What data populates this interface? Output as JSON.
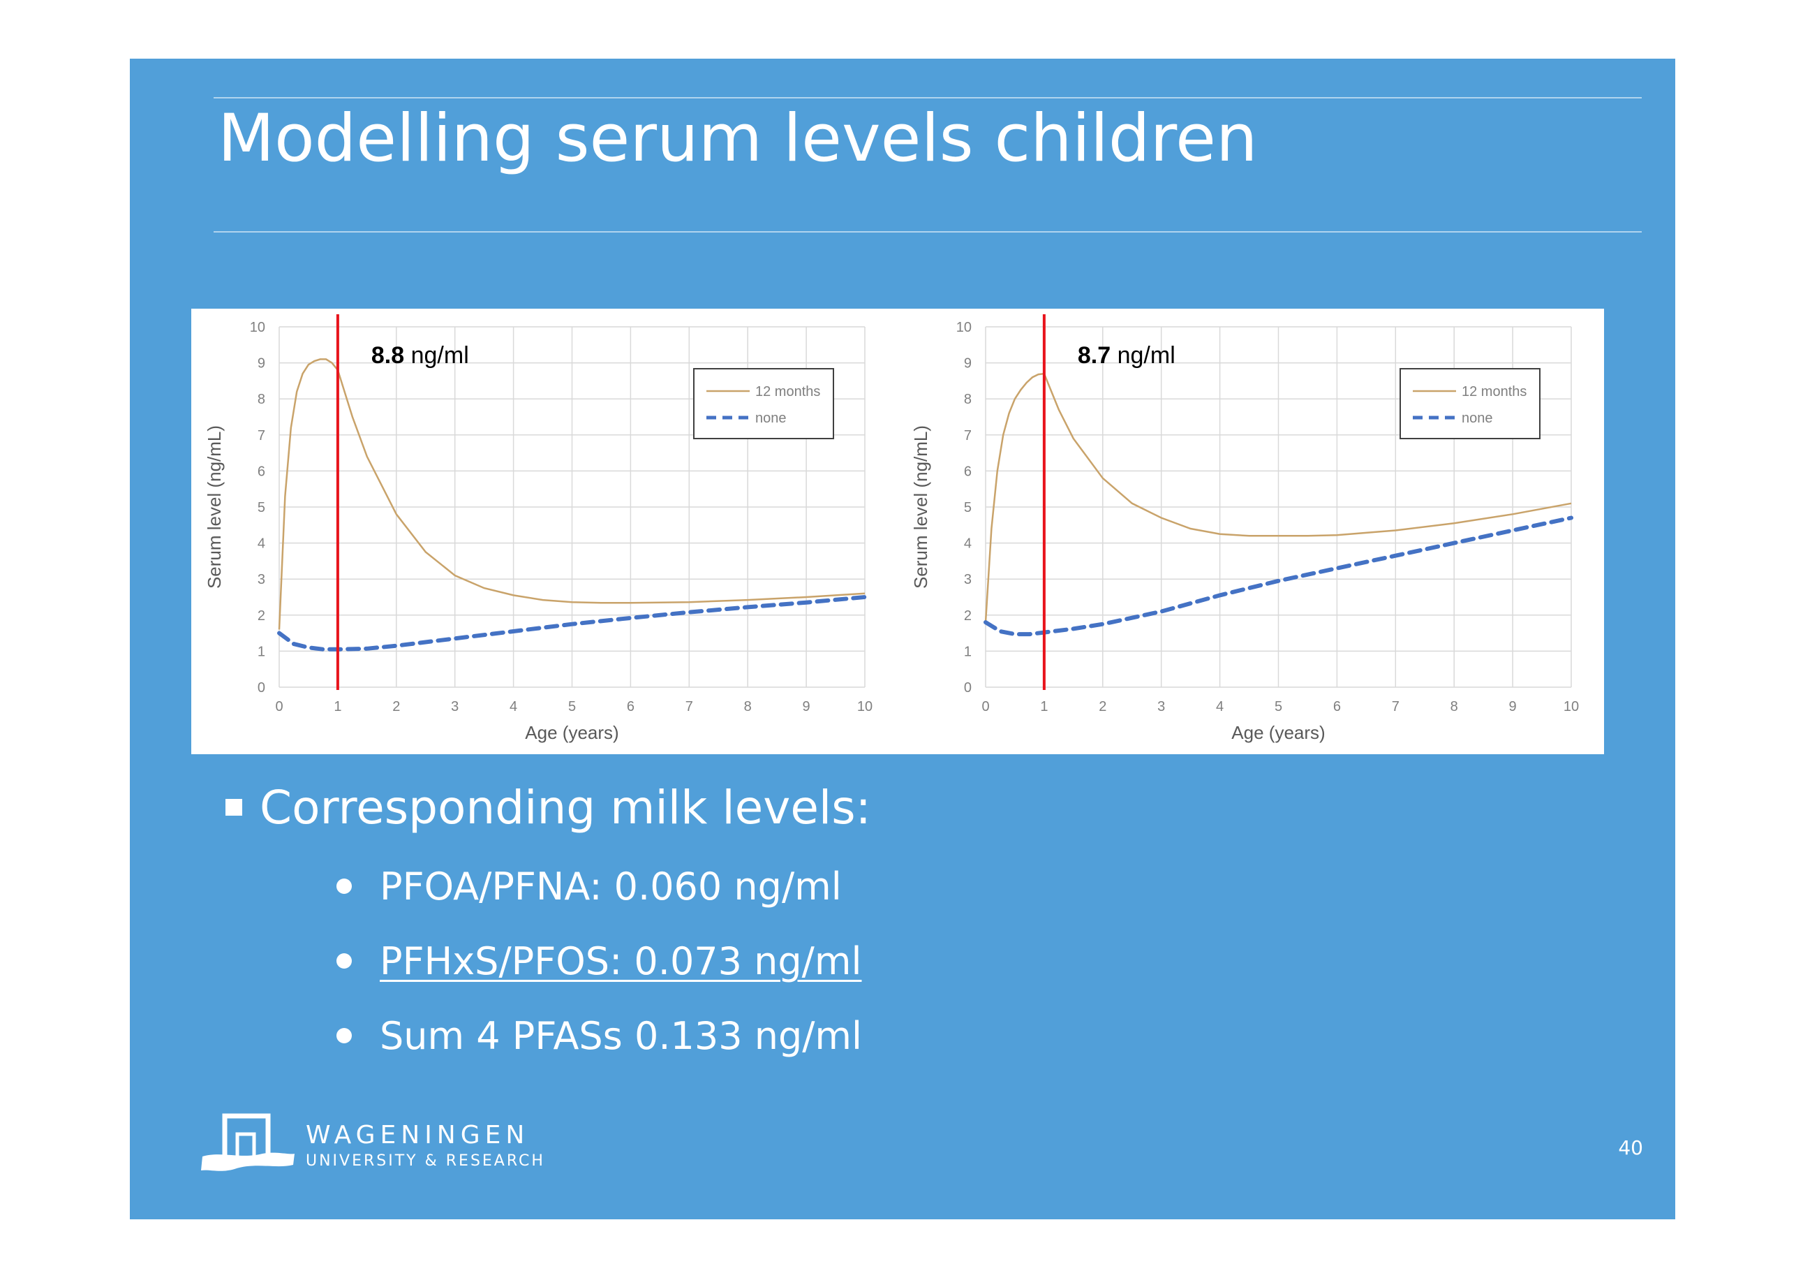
{
  "slide": {
    "title": "Modelling serum levels children",
    "bullet_heading": "Corresponding milk levels:",
    "sub_bullets": [
      {
        "text": "PFOA/PFNA: 0.060 ng/ml",
        "underlined": false
      },
      {
        "text": "PFHxS/PFOS: 0.073 ng/ml",
        "underlined": true
      },
      {
        "text": "Sum 4 PFASs 0.133 ng/ml",
        "underlined": false
      }
    ],
    "page_number": "40",
    "logo": {
      "name": "WAGENINGEN",
      "subtitle": "UNIVERSITY & RESEARCH",
      "icon": "wageningen-logo-icon"
    },
    "colors": {
      "background": "#519fd9",
      "text": "#ffffff",
      "marker": "#e8141c",
      "series_12_months": "#c9a36a",
      "series_none": "#4472c4"
    }
  },
  "chart_data": [
    {
      "type": "line",
      "xlabel": "Age (years)",
      "ylabel": "Serum level (ng/mL)",
      "xlim": [
        0,
        10
      ],
      "ylim": [
        0,
        10
      ],
      "xticks": [
        0,
        1,
        2,
        3,
        4,
        5,
        6,
        7,
        8,
        9,
        10
      ],
      "yticks": [
        0,
        1,
        2,
        3,
        4,
        5,
        6,
        7,
        8,
        9,
        10
      ],
      "grid": true,
      "legend": "top-right",
      "annotation": {
        "bold": "8.8",
        "text": "ng/ml"
      },
      "marker_line_x": 1,
      "series": [
        {
          "name": "12 months",
          "style": "solid",
          "x": [
            0,
            0.1,
            0.2,
            0.3,
            0.4,
            0.5,
            0.6,
            0.7,
            0.8,
            0.9,
            1.0,
            1.25,
            1.5,
            2,
            2.5,
            3,
            3.5,
            4,
            4.5,
            5,
            5.5,
            6,
            7,
            8,
            9,
            10
          ],
          "y": [
            1.6,
            5.3,
            7.2,
            8.2,
            8.7,
            8.95,
            9.05,
            9.1,
            9.1,
            9.0,
            8.8,
            7.5,
            6.4,
            4.8,
            3.75,
            3.1,
            2.75,
            2.55,
            2.42,
            2.36,
            2.34,
            2.34,
            2.36,
            2.42,
            2.5,
            2.6
          ]
        },
        {
          "name": "none",
          "style": "dashed",
          "x": [
            0,
            0.25,
            0.5,
            0.75,
            1,
            1.5,
            2,
            3,
            4,
            5,
            6,
            7,
            8,
            9,
            10
          ],
          "y": [
            1.5,
            1.2,
            1.1,
            1.05,
            1.05,
            1.07,
            1.15,
            1.35,
            1.55,
            1.75,
            1.92,
            2.08,
            2.22,
            2.35,
            2.5
          ]
        }
      ]
    },
    {
      "type": "line",
      "xlabel": "Age (years)",
      "ylabel": "Serum level (ng/mL)",
      "xlim": [
        0,
        10
      ],
      "ylim": [
        0,
        10
      ],
      "xticks": [
        0,
        1,
        2,
        3,
        4,
        5,
        6,
        7,
        8,
        9,
        10
      ],
      "yticks": [
        0,
        1,
        2,
        3,
        4,
        5,
        6,
        7,
        8,
        9,
        10
      ],
      "grid": true,
      "legend": "top-right",
      "annotation": {
        "bold": "8.7",
        "text": "ng/ml"
      },
      "marker_line_x": 1,
      "series": [
        {
          "name": "12 months",
          "style": "solid",
          "x": [
            0,
            0.1,
            0.2,
            0.3,
            0.4,
            0.5,
            0.6,
            0.7,
            0.8,
            0.9,
            1.0,
            1.25,
            1.5,
            2,
            2.5,
            3,
            3.5,
            4,
            4.5,
            5,
            5.5,
            6,
            7,
            8,
            9,
            10
          ],
          "y": [
            1.8,
            4.4,
            6.0,
            7.0,
            7.6,
            8.0,
            8.25,
            8.45,
            8.6,
            8.68,
            8.7,
            7.7,
            6.9,
            5.8,
            5.1,
            4.7,
            4.4,
            4.25,
            4.2,
            4.2,
            4.2,
            4.22,
            4.35,
            4.55,
            4.8,
            5.1
          ]
        },
        {
          "name": "none",
          "style": "dashed",
          "x": [
            0,
            0.25,
            0.5,
            0.75,
            1,
            1.5,
            2,
            3,
            4,
            5,
            6,
            7,
            8,
            9,
            10
          ],
          "y": [
            1.8,
            1.55,
            1.47,
            1.47,
            1.52,
            1.62,
            1.75,
            2.1,
            2.55,
            2.95,
            3.3,
            3.65,
            4.0,
            4.35,
            4.7
          ]
        }
      ]
    }
  ]
}
